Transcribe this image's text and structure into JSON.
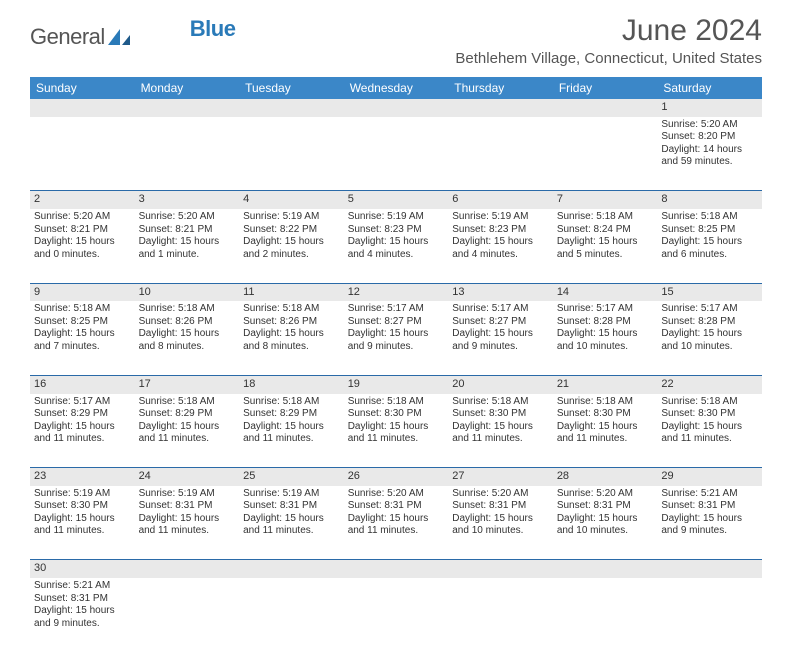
{
  "logo": {
    "text1": "General",
    "text2": "Blue"
  },
  "title": "June 2024",
  "location": "Bethlehem Village, Connecticut, United States",
  "colors": {
    "header_bg": "#3b87c8",
    "rule": "#2a6aa8",
    "daynum_bg": "#e9e9e9"
  },
  "weekdays": [
    "Sunday",
    "Monday",
    "Tuesday",
    "Wednesday",
    "Thursday",
    "Friday",
    "Saturday"
  ],
  "days": {
    "1": {
      "sunrise": "5:20 AM",
      "sunset": "8:20 PM",
      "daylight": "14 hours and 59 minutes."
    },
    "2": {
      "sunrise": "5:20 AM",
      "sunset": "8:21 PM",
      "daylight": "15 hours and 0 minutes."
    },
    "3": {
      "sunrise": "5:20 AM",
      "sunset": "8:21 PM",
      "daylight": "15 hours and 1 minute."
    },
    "4": {
      "sunrise": "5:19 AM",
      "sunset": "8:22 PM",
      "daylight": "15 hours and 2 minutes."
    },
    "5": {
      "sunrise": "5:19 AM",
      "sunset": "8:23 PM",
      "daylight": "15 hours and 4 minutes."
    },
    "6": {
      "sunrise": "5:19 AM",
      "sunset": "8:23 PM",
      "daylight": "15 hours and 4 minutes."
    },
    "7": {
      "sunrise": "5:18 AM",
      "sunset": "8:24 PM",
      "daylight": "15 hours and 5 minutes."
    },
    "8": {
      "sunrise": "5:18 AM",
      "sunset": "8:25 PM",
      "daylight": "15 hours and 6 minutes."
    },
    "9": {
      "sunrise": "5:18 AM",
      "sunset": "8:25 PM",
      "daylight": "15 hours and 7 minutes."
    },
    "10": {
      "sunrise": "5:18 AM",
      "sunset": "8:26 PM",
      "daylight": "15 hours and 8 minutes."
    },
    "11": {
      "sunrise": "5:18 AM",
      "sunset": "8:26 PM",
      "daylight": "15 hours and 8 minutes."
    },
    "12": {
      "sunrise": "5:17 AM",
      "sunset": "8:27 PM",
      "daylight": "15 hours and 9 minutes."
    },
    "13": {
      "sunrise": "5:17 AM",
      "sunset": "8:27 PM",
      "daylight": "15 hours and 9 minutes."
    },
    "14": {
      "sunrise": "5:17 AM",
      "sunset": "8:28 PM",
      "daylight": "15 hours and 10 minutes."
    },
    "15": {
      "sunrise": "5:17 AM",
      "sunset": "8:28 PM",
      "daylight": "15 hours and 10 minutes."
    },
    "16": {
      "sunrise": "5:17 AM",
      "sunset": "8:29 PM",
      "daylight": "15 hours and 11 minutes."
    },
    "17": {
      "sunrise": "5:18 AM",
      "sunset": "8:29 PM",
      "daylight": "15 hours and 11 minutes."
    },
    "18": {
      "sunrise": "5:18 AM",
      "sunset": "8:29 PM",
      "daylight": "15 hours and 11 minutes."
    },
    "19": {
      "sunrise": "5:18 AM",
      "sunset": "8:30 PM",
      "daylight": "15 hours and 11 minutes."
    },
    "20": {
      "sunrise": "5:18 AM",
      "sunset": "8:30 PM",
      "daylight": "15 hours and 11 minutes."
    },
    "21": {
      "sunrise": "5:18 AM",
      "sunset": "8:30 PM",
      "daylight": "15 hours and 11 minutes."
    },
    "22": {
      "sunrise": "5:18 AM",
      "sunset": "8:30 PM",
      "daylight": "15 hours and 11 minutes."
    },
    "23": {
      "sunrise": "5:19 AM",
      "sunset": "8:30 PM",
      "daylight": "15 hours and 11 minutes."
    },
    "24": {
      "sunrise": "5:19 AM",
      "sunset": "8:31 PM",
      "daylight": "15 hours and 11 minutes."
    },
    "25": {
      "sunrise": "5:19 AM",
      "sunset": "8:31 PM",
      "daylight": "15 hours and 11 minutes."
    },
    "26": {
      "sunrise": "5:20 AM",
      "sunset": "8:31 PM",
      "daylight": "15 hours and 11 minutes."
    },
    "27": {
      "sunrise": "5:20 AM",
      "sunset": "8:31 PM",
      "daylight": "15 hours and 10 minutes."
    },
    "28": {
      "sunrise": "5:20 AM",
      "sunset": "8:31 PM",
      "daylight": "15 hours and 10 minutes."
    },
    "29": {
      "sunrise": "5:21 AM",
      "sunset": "8:31 PM",
      "daylight": "15 hours and 9 minutes."
    },
    "30": {
      "sunrise": "5:21 AM",
      "sunset": "8:31 PM",
      "daylight": "15 hours and 9 minutes."
    }
  },
  "labels": {
    "sunrise": "Sunrise:",
    "sunset": "Sunset:",
    "daylight": "Daylight:"
  },
  "layout": {
    "first_weekday_index": 6,
    "num_days": 30
  }
}
